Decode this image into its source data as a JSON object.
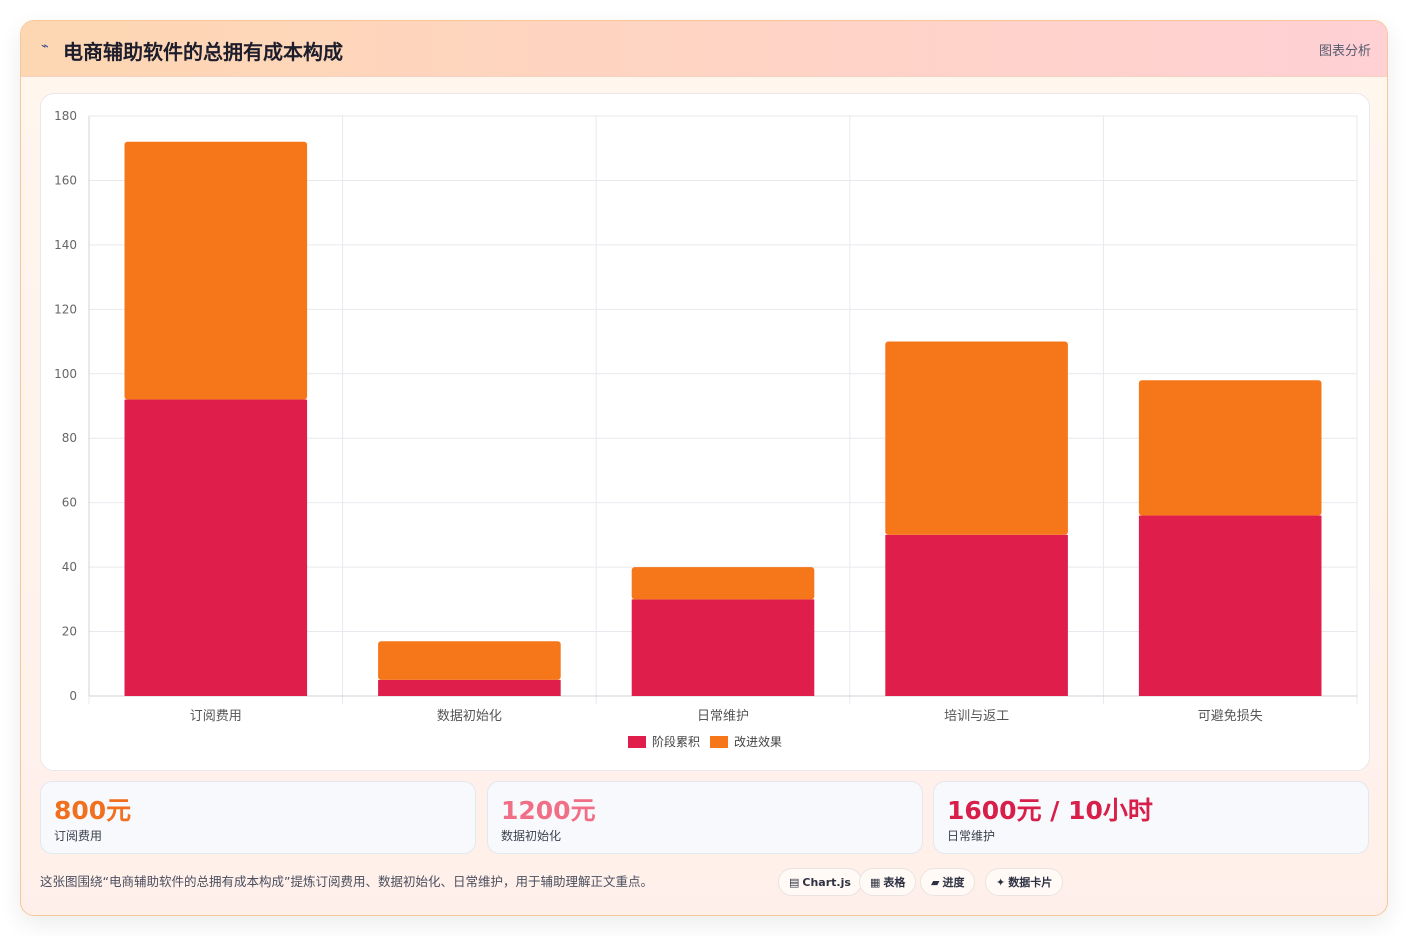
{
  "header": {
    "icon": "chart-line-icon",
    "title": "电商辅助软件的总拥有成本构成",
    "tag": "图表分析"
  },
  "chart_data": {
    "type": "bar",
    "stacked": true,
    "categories": [
      "订阅费用",
      "数据初始化",
      "日常维护",
      "培训与返工",
      "可避免损失"
    ],
    "series": [
      {
        "name": "阶段累积",
        "color": "#e01e4b",
        "values": [
          92,
          5,
          30,
          50,
          56
        ]
      },
      {
        "name": "改进效果",
        "color": "#f6761a",
        "values": [
          80,
          12,
          10,
          60,
          42
        ]
      }
    ],
    "ylim": [
      0,
      180
    ],
    "yticks": [
      0,
      20,
      40,
      60,
      80,
      100,
      120,
      140,
      160,
      180
    ],
    "grid": true,
    "legend_position": "bottom"
  },
  "stats": [
    {
      "value": "800元",
      "label": "订阅费用",
      "color": "#f0701f"
    },
    {
      "value": "1200元",
      "label": "数据初始化",
      "color": "#f06f86"
    },
    {
      "value": "1600元 / 10小时",
      "label": "日常维护",
      "color": "#d71f4a"
    }
  ],
  "caption": "这张图围绕“电商辅助软件的总拥有成本构成”提炼订阅费用、数据初始化、日常维护，用于辅助理解正文重点。",
  "pills": [
    {
      "icon": "▤",
      "label": "Chart.js"
    },
    {
      "icon": "▦",
      "label": "表格"
    },
    {
      "icon": "▰",
      "label": "进度"
    },
    {
      "icon": "✦",
      "label": "数据卡片"
    }
  ]
}
